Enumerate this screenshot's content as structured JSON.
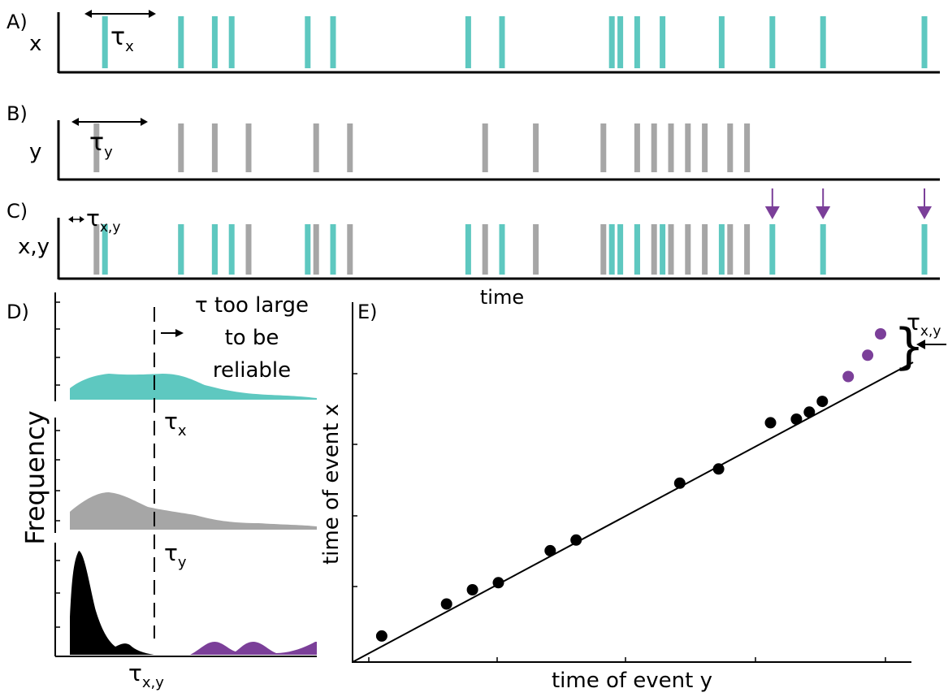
{
  "colors": {
    "x": "#5ec8c0",
    "y": "#a6a6a6",
    "xy_black": "#000000",
    "unreliable": "#7b3f99"
  },
  "panelA": {
    "tag": "A)",
    "var": "x",
    "tau_main": "τ",
    "tau_sub": "x",
    "events": [
      1.5,
      6,
      8,
      9,
      13.5,
      15,
      23,
      25,
      31.5,
      32,
      33,
      34.5,
      38,
      41,
      44,
      50
    ]
  },
  "panelB": {
    "tag": "B)",
    "var": "y",
    "tau_main": "τ",
    "tau_sub": "y",
    "events": [
      1,
      6,
      8,
      10,
      14,
      16,
      24,
      27,
      31,
      33,
      34,
      35,
      36,
      37,
      38.5,
      39.5
    ]
  },
  "panelC": {
    "tag": "C)",
    "var": "x,y",
    "tau_main": "τ",
    "tau_sub": "x,y",
    "axis_label": "time",
    "highlighted_x_events": [
      41,
      44,
      50
    ]
  },
  "panelD": {
    "tag": "D)",
    "ylabel": "Frequency",
    "note_line1": "τ too large",
    "note_line2": "to be",
    "note_line3": "reliable",
    "tau_x_main": "τ",
    "tau_x_sub": "x",
    "tau_y_main": "τ",
    "tau_y_sub": "y",
    "tau_xy_main": "τ",
    "tau_xy_sub": "x,y"
  },
  "panelE": {
    "tag": "E)",
    "xlabel": "time of event y",
    "ylabel": "time of event x",
    "tau_main": "τ",
    "tau_sub": "x,y",
    "points": [
      [
        1,
        1.5
      ],
      [
        6,
        6
      ],
      [
        8,
        8
      ],
      [
        10,
        9
      ],
      [
        14,
        13.5
      ],
      [
        16,
        15
      ],
      [
        24,
        23
      ],
      [
        27,
        25
      ],
      [
        31,
        31.5
      ],
      [
        33,
        32
      ],
      [
        34,
        33
      ],
      [
        35,
        34.5
      ]
    ],
    "unreliable_points": [
      [
        37,
        38
      ],
      [
        38.5,
        41
      ],
      [
        39.5,
        44
      ]
    ]
  }
}
